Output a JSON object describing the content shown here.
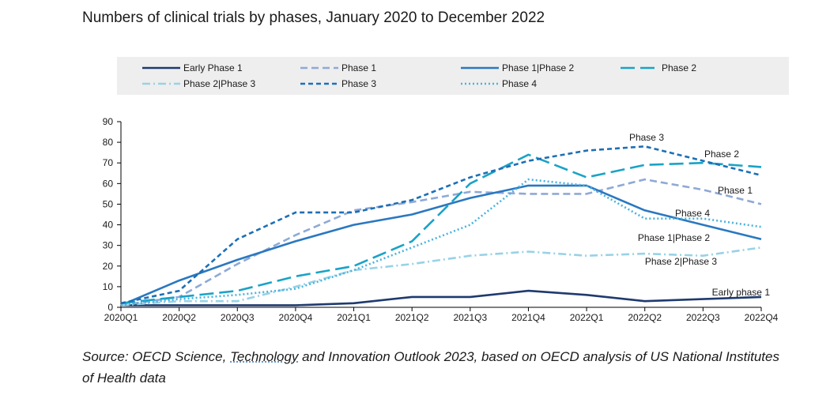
{
  "title": "Numbers of clinical trials by phases, January 2020 to December 2022",
  "source": {
    "before": "Source: OECD Science, ",
    "underlined": "Technology",
    "after": " and Innovation Outlook 2023, based on OECD analysis of US National Institutes of Health data"
  },
  "chart_data": {
    "type": "line",
    "categories": [
      "2020Q1",
      "2020Q2",
      "2020Q3",
      "2020Q4",
      "2021Q1",
      "2021Q2",
      "2021Q3",
      "2021Q4",
      "2022Q1",
      "2022Q2",
      "2022Q3",
      "2022Q4"
    ],
    "ylim": [
      0,
      90
    ],
    "yticks": [
      0,
      10,
      20,
      30,
      40,
      50,
      60,
      70,
      80,
      90
    ],
    "grid": false,
    "legend_position": "top",
    "series": [
      {
        "name": "Early Phase 1",
        "end_label": "Early phase 1",
        "color": "#1f3a6e",
        "dash": "solid",
        "values": [
          1,
          1,
          1,
          1,
          2,
          5,
          5,
          8,
          6,
          3,
          4,
          5
        ]
      },
      {
        "name": "Phase 1",
        "end_label": "Phase 1",
        "color": "#8fa9d6",
        "dash": "dash",
        "values": [
          1,
          5,
          21,
          35,
          47,
          51,
          56,
          55,
          55,
          62,
          57,
          50
        ]
      },
      {
        "name": "Phase 1|Phase 2",
        "end_label": "Phase 1|Phase 2",
        "color": "#2a78c0",
        "dash": "solid",
        "values": [
          1,
          13,
          23,
          32,
          40,
          45,
          53,
          59,
          59,
          47,
          40,
          33
        ]
      },
      {
        "name": "Phase 2",
        "end_label": "Phase 2",
        "color": "#1aa3c6",
        "dash": "longdash",
        "values": [
          2,
          5,
          8,
          15,
          20,
          32,
          60,
          74,
          63,
          69,
          70,
          68
        ]
      },
      {
        "name": "Phase 2|Phase 3",
        "end_label": "Phase 2|Phase 3",
        "color": "#98d2e6",
        "dash": "dashdot",
        "values": [
          1,
          3,
          3,
          10,
          18,
          21,
          25,
          27,
          25,
          26,
          25,
          29
        ]
      },
      {
        "name": "Phase 3",
        "end_label": "Phase 3",
        "color": "#1d6fb5",
        "dash": "shortdash",
        "values": [
          2,
          8,
          33,
          46,
          46,
          52,
          63,
          71,
          76,
          78,
          71,
          64
        ]
      },
      {
        "name": "Phase 4",
        "end_label": "Phase 4",
        "color": "#4ab3de",
        "dash": "dot",
        "values": [
          1,
          4,
          6,
          9,
          18,
          29,
          40,
          62,
          59,
          43,
          43,
          39
        ]
      }
    ]
  }
}
